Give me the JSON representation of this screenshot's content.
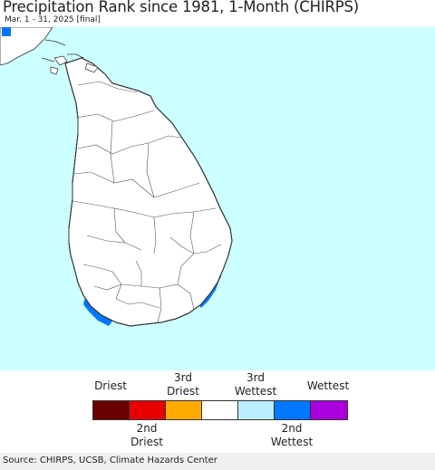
{
  "header": {
    "title": "Precipitation Rank since 1981, 1-Month (CHIRPS)",
    "subtitle": "Mar. 1 - 31, 2025 [final]"
  },
  "map": {
    "ocean_color": "#ccffff",
    "land_default_color": "#ffffff",
    "border_color": "#333333"
  },
  "legend": {
    "top_labels": [
      {
        "l1": "",
        "l2": "Driest"
      },
      {
        "l1": "3rd",
        "l2": "Driest"
      },
      {
        "l1": "3rd",
        "l2": "Wettest"
      },
      {
        "l1": "",
        "l2": "Wettest"
      }
    ],
    "bottom_labels": [
      {
        "l1": "2nd",
        "l2": "Driest"
      },
      {
        "l1": "2nd",
        "l2": "Wettest"
      }
    ],
    "colors": [
      "#6b0000",
      "#e80000",
      "#ffaa00",
      "#ffffff",
      "#bbeeff",
      "#0077ff",
      "#aa00dd"
    ],
    "color_names": [
      "driest",
      "2nd-driest",
      "3rd-driest",
      "normal",
      "3rd-wettest",
      "2nd-wettest",
      "wettest"
    ]
  },
  "footer": {
    "source": "Source: CHIRPS, UCSB, Climate Hazards Center"
  }
}
